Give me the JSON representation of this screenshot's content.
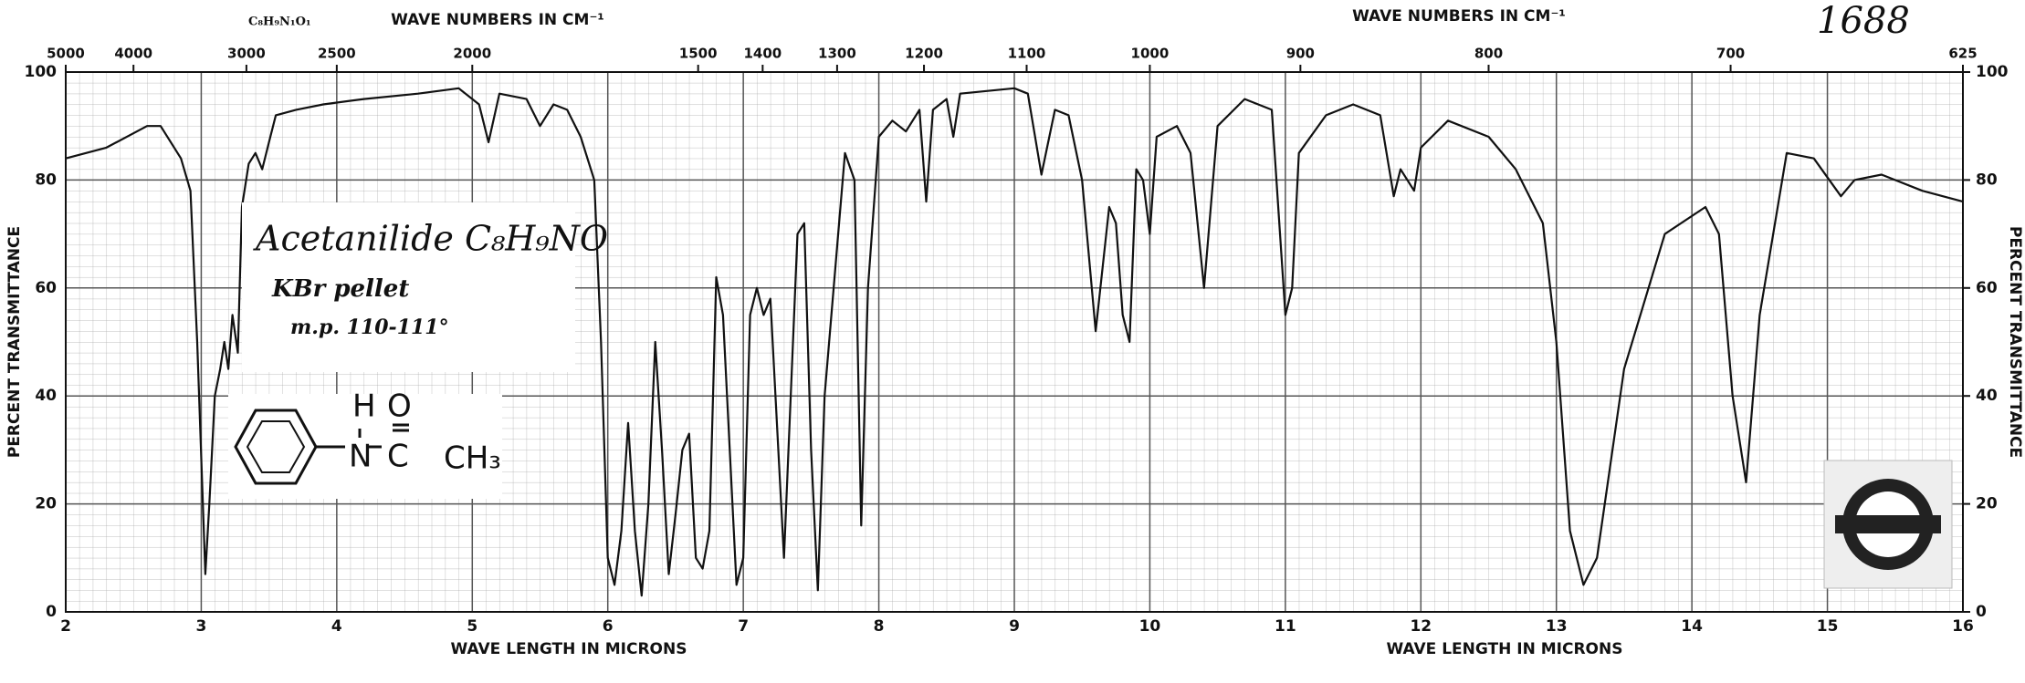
{
  "chart_data": {
    "type": "line",
    "annotations": {
      "catalog_number": "1688",
      "formula_top": "C₈H₉N₁O₁",
      "compound": "Acetanilide C₈H₉NO",
      "sample": "KBr pellet",
      "melting_point": "m.p. 110-111°",
      "structure_labels": [
        "H",
        "O",
        "N",
        "C",
        "CH₃"
      ]
    },
    "x_label": "WAVE LENGTH IN MICRONS",
    "x_label_right": "WAVE LENGTH IN MICRONS",
    "x2_label": "WAVE NUMBERS IN CM⁻¹",
    "x2_label_right": "WAVE NUMBERS IN CM⁻¹",
    "y_label": "PERCENT TRANSMITTANCE",
    "y2_label": "PERCENT TRANSMITTANCE",
    "xlim": [
      2,
      16
    ],
    "xticks": [
      2,
      3,
      4,
      5,
      6,
      7,
      8,
      9,
      10,
      11,
      12,
      13,
      14,
      15,
      16
    ],
    "x2ticks": [
      5000,
      4000,
      3000,
      2500,
      2000,
      1500,
      1400,
      1300,
      1200,
      1100,
      1000,
      900,
      800,
      700,
      625
    ],
    "ylim": [
      0,
      100
    ],
    "yticks": [
      0,
      20,
      40,
      60,
      80,
      100
    ],
    "y2lim": [
      0,
      100
    ],
    "y2ticks": [
      0,
      20,
      40,
      60,
      80,
      100
    ],
    "grid": true,
    "x": [
      2.0,
      2.3,
      2.6,
      2.7,
      2.85,
      2.92,
      2.97,
      3.03,
      3.06,
      3.1,
      3.14,
      3.17,
      3.2,
      3.23,
      3.27,
      3.3,
      3.35,
      3.4,
      3.45,
      3.5,
      3.55,
      3.7,
      3.9,
      4.2,
      4.6,
      4.9,
      5.05,
      5.12,
      5.2,
      5.4,
      5.5,
      5.6,
      5.7,
      5.8,
      5.9,
      5.95,
      6.0,
      6.05,
      6.1,
      6.15,
      6.2,
      6.25,
      6.3,
      6.35,
      6.4,
      6.45,
      6.5,
      6.55,
      6.6,
      6.65,
      6.7,
      6.75,
      6.8,
      6.85,
      6.95,
      7.0,
      7.05,
      7.1,
      7.15,
      7.2,
      7.3,
      7.4,
      7.45,
      7.5,
      7.55,
      7.6,
      7.75,
      7.82,
      7.87,
      7.92,
      8.0,
      8.1,
      8.2,
      8.3,
      8.35,
      8.4,
      8.5,
      8.55,
      8.6,
      9.0,
      9.1,
      9.2,
      9.3,
      9.4,
      9.5,
      9.6,
      9.7,
      9.75,
      9.8,
      9.85,
      9.9,
      9.95,
      10.0,
      10.05,
      10.2,
      10.3,
      10.4,
      10.5,
      10.7,
      10.9,
      11.0,
      11.05,
      11.1,
      11.3,
      11.5,
      11.7,
      11.8,
      11.85,
      11.95,
      12.0,
      12.2,
      12.5,
      12.7,
      12.9,
      13.0,
      13.1,
      13.2,
      13.3,
      13.5,
      13.8,
      14.1,
      14.2,
      14.3,
      14.4,
      14.5,
      14.7,
      14.9,
      15.1,
      15.2,
      15.4,
      15.7,
      16.0
    ],
    "series": [
      {
        "name": "Acetanilide",
        "color": "#111111",
        "values": [
          84,
          86,
          90,
          90,
          84,
          78,
          50,
          7,
          20,
          40,
          45,
          50,
          45,
          55,
          48,
          75,
          83,
          85,
          82,
          87,
          92,
          93,
          94,
          95,
          96,
          97,
          94,
          87,
          96,
          95,
          90,
          94,
          93,
          88,
          80,
          50,
          10,
          5,
          15,
          35,
          15,
          3,
          20,
          50,
          30,
          7,
          18,
          30,
          33,
          10,
          8,
          15,
          62,
          55,
          5,
          10,
          55,
          60,
          55,
          58,
          10,
          70,
          72,
          30,
          4,
          40,
          85,
          80,
          16,
          60,
          88,
          91,
          89,
          93,
          76,
          93,
          95,
          88,
          96,
          97,
          96,
          81,
          93,
          92,
          80,
          52,
          75,
          72,
          55,
          50,
          82,
          80,
          70,
          88,
          90,
          85,
          60,
          90,
          95,
          93,
          55,
          60,
          85,
          92,
          94,
          92,
          77,
          82,
          78,
          86,
          91,
          88,
          82,
          72,
          50,
          15,
          5,
          10,
          45,
          70,
          75,
          70,
          40,
          24,
          55,
          85,
          84,
          77,
          80,
          81,
          78,
          76
        ]
      }
    ]
  }
}
